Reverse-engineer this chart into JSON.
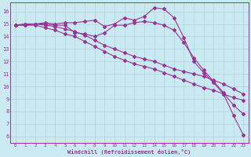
{
  "bg_color": "#c8eaf0",
  "grid_color": "#b0d4dc",
  "line_color": "#993399",
  "xlim": [
    -0.5,
    23.5
  ],
  "ylim": [
    5.5,
    16.7
  ],
  "xticks": [
    0,
    1,
    2,
    3,
    4,
    5,
    6,
    7,
    8,
    9,
    10,
    11,
    12,
    13,
    14,
    15,
    16,
    17,
    18,
    19,
    20,
    21,
    22,
    23
  ],
  "yticks": [
    6,
    7,
    8,
    9,
    10,
    11,
    12,
    13,
    14,
    15,
    16
  ],
  "xlabel": "Windchill (Refroidissement éolien,°C)",
  "series": [
    [
      14.9,
      15.0,
      15.0,
      15.1,
      15.0,
      15.1,
      15.1,
      15.2,
      15.3,
      14.8,
      15.0,
      15.5,
      15.3,
      15.6,
      16.3,
      16.2,
      15.5,
      13.9,
      12.0,
      11.1,
      10.3,
      9.4,
      7.7,
      6.1
    ],
    [
      14.9,
      14.9,
      15.0,
      15.0,
      14.9,
      14.9,
      14.3,
      14.2,
      14.0,
      14.3,
      14.9,
      14.9,
      15.1,
      15.2,
      15.1,
      14.9,
      14.5,
      13.5,
      12.3,
      11.3,
      10.4,
      9.5,
      8.5,
      7.8
    ],
    [
      14.9,
      15.0,
      15.0,
      14.9,
      14.8,
      14.6,
      14.4,
      14.1,
      13.7,
      13.3,
      13.0,
      12.7,
      12.4,
      12.2,
      12.0,
      11.7,
      11.4,
      11.2,
      11.0,
      10.8,
      10.5,
      10.2,
      9.8,
      9.4
    ],
    [
      14.9,
      14.9,
      14.9,
      14.7,
      14.5,
      14.2,
      14.0,
      13.6,
      13.2,
      12.8,
      12.4,
      12.1,
      11.8,
      11.6,
      11.4,
      11.1,
      10.8,
      10.5,
      10.2,
      9.9,
      9.7,
      9.4,
      9.1,
      8.9
    ]
  ]
}
